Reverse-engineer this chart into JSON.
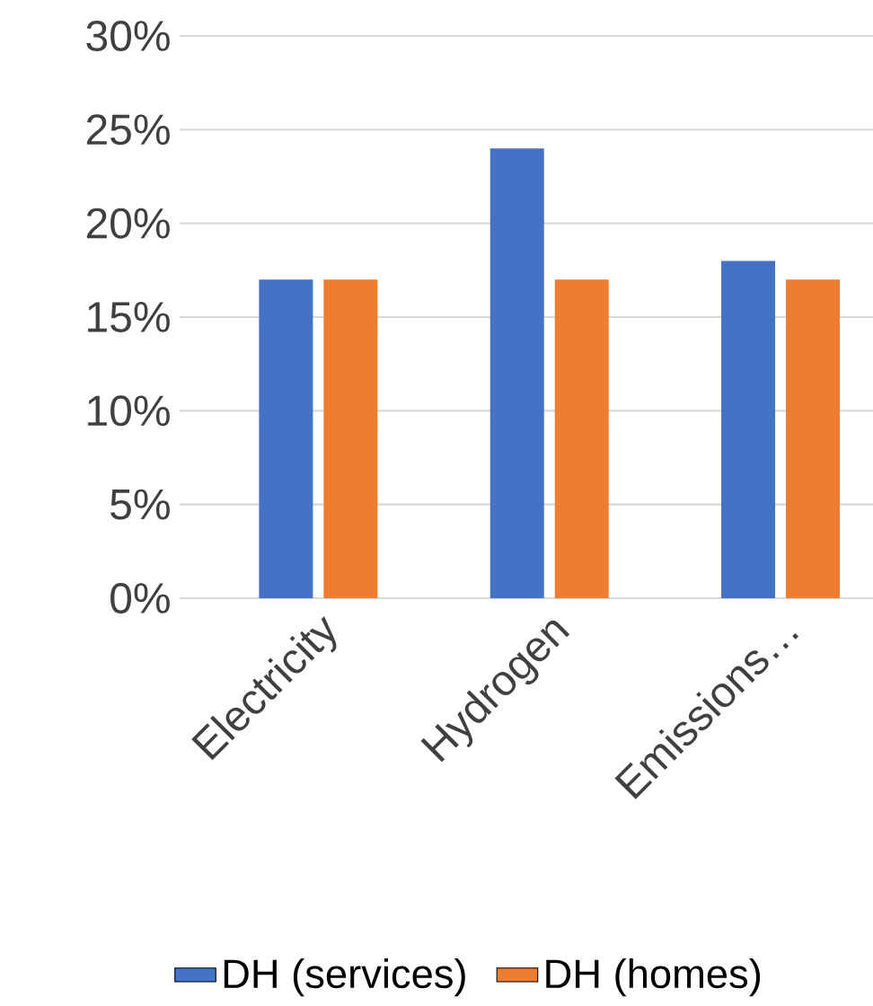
{
  "chart_data": {
    "type": "bar",
    "categories": [
      "Electricity",
      "Hydrogen",
      "Emissions…"
    ],
    "series": [
      {
        "name": "DH (services)",
        "color": "#4472c4",
        "values": [
          17,
          24,
          18
        ]
      },
      {
        "name": "DH (homes)",
        "color": "#ed7d31",
        "values": [
          17,
          17,
          17
        ]
      }
    ],
    "ylim": [
      0,
      30
    ],
    "yticks": [
      {
        "value": 0,
        "label": "0%"
      },
      {
        "value": 5,
        "label": "5%"
      },
      {
        "value": 10,
        "label": "10%"
      },
      {
        "value": 15,
        "label": "15%"
      },
      {
        "value": 20,
        "label": "20%"
      },
      {
        "value": 25,
        "label": "25%"
      },
      {
        "value": 30,
        "label": "30%"
      }
    ],
    "grid": "y",
    "legend": "bottom"
  }
}
